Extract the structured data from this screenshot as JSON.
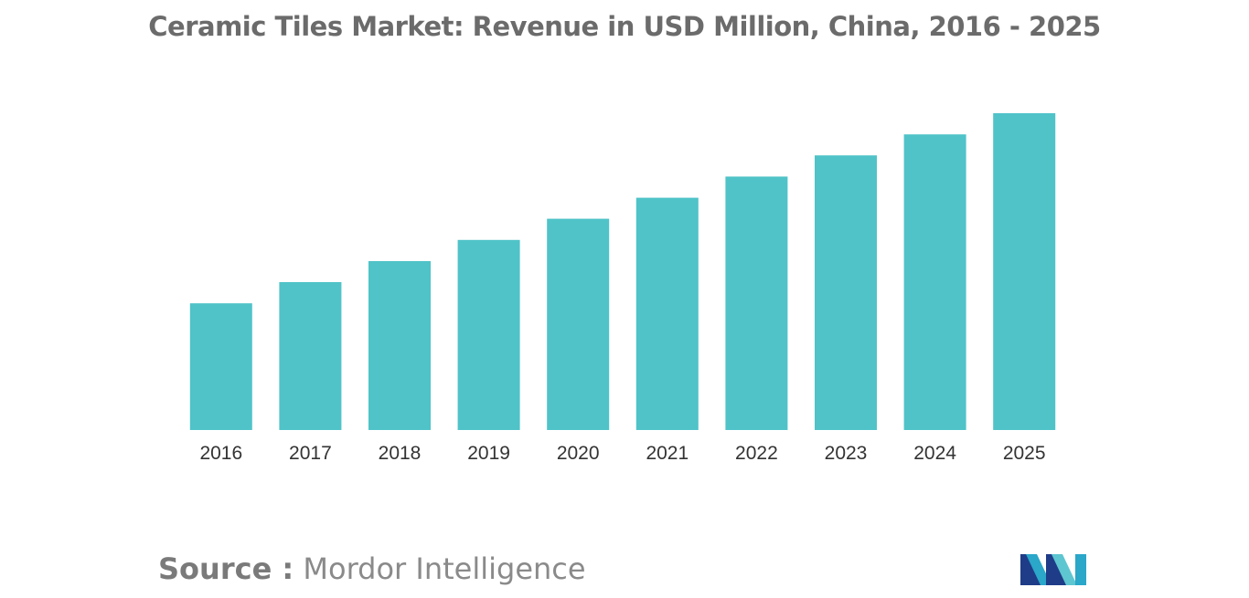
{
  "title": "Ceramic Tiles Market: Revenue in USD Million, China, 2016 - 2025",
  "source": {
    "label": "Source :",
    "name": "Mordor Intelligence"
  },
  "logo": {
    "icon": "mordor-intelligence-logo",
    "colors": [
      "#1f3c88",
      "#2aa7c9",
      "#5ec6d0"
    ]
  },
  "chart_data": {
    "type": "bar",
    "categories": [
      "2016",
      "2017",
      "2018",
      "2019",
      "2020",
      "2021",
      "2022",
      "2023",
      "2024",
      "2025"
    ],
    "values": [
      40,
      46.7,
      53.3,
      60,
      66.7,
      73.3,
      80,
      86.7,
      93.3,
      100
    ],
    "ylim": [
      0,
      100
    ],
    "grid": false,
    "legend": "none",
    "bar_color": "#4fc3c8",
    "xlabel": "",
    "ylabel": ""
  }
}
